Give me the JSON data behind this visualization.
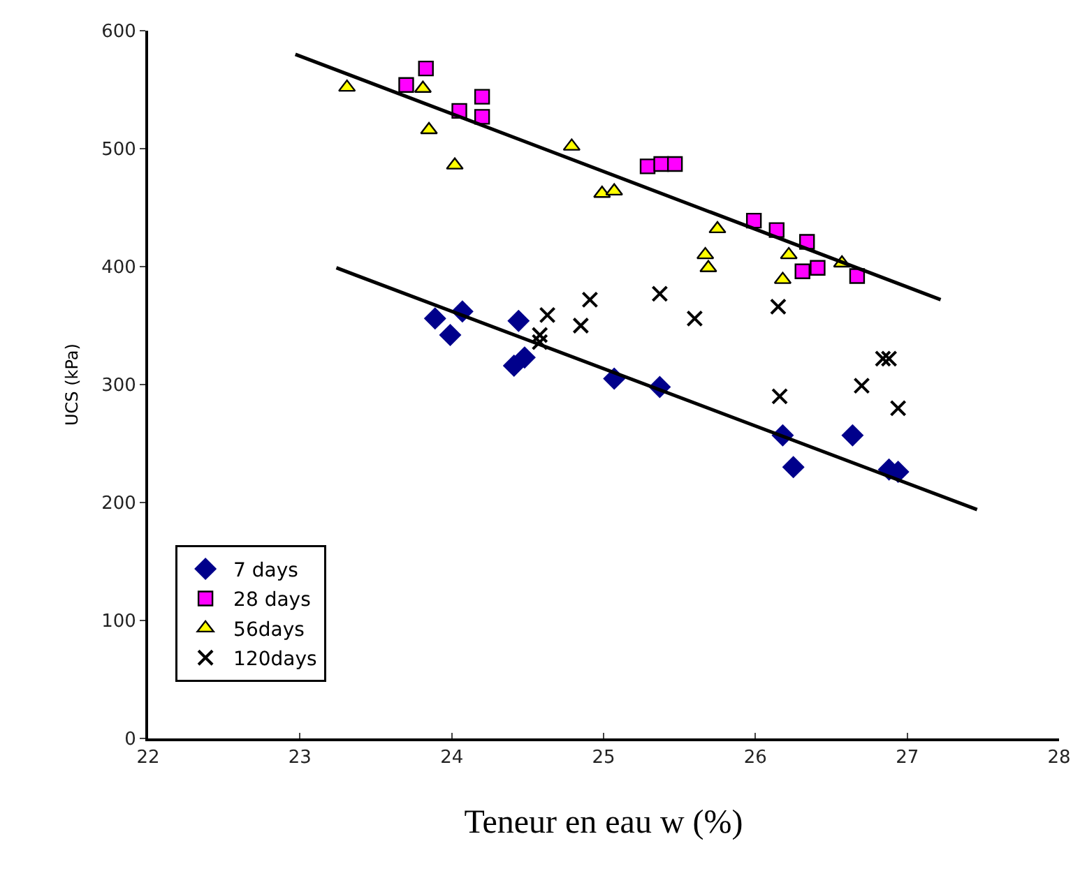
{
  "chart_data": {
    "type": "scatter",
    "xlabel": "Teneur en eau w (%)",
    "ylabel": "UCS (kPa)",
    "xlim": [
      22,
      28
    ],
    "xticks": [
      22,
      23,
      24,
      25,
      26,
      27,
      28
    ],
    "ylim": [
      0,
      600
    ],
    "yticks": [
      0,
      100,
      200,
      300,
      400,
      500,
      600
    ],
    "legend": "bottom left",
    "series": [
      {
        "name": "7 days",
        "color": "#00008b",
        "marker": "diamond",
        "x": [
          23.89,
          24.07,
          23.99,
          24.44,
          24.41,
          24.48,
          25.07,
          25.37,
          26.18,
          26.25,
          26.64,
          26.88,
          26.94
        ],
        "values": [
          356,
          362,
          342,
          354,
          316,
          323,
          305,
          298,
          257,
          230,
          257,
          228,
          226
        ]
      },
      {
        "name": "28 days",
        "color": "#ff00ff",
        "marker": "square",
        "x": [
          23.7,
          23.83,
          24.05,
          24.2,
          24.2,
          25.29,
          25.38,
          25.47,
          25.99,
          26.14,
          26.34,
          26.31,
          26.41,
          26.67
        ],
        "values": [
          554,
          568,
          532,
          544,
          527,
          485,
          487,
          487,
          439,
          431,
          421,
          396,
          399,
          392
        ]
      },
      {
        "name": "56days",
        "color": "#ffff00",
        "marker": "triangle",
        "x": [
          23.31,
          23.81,
          23.85,
          24.02,
          24.79,
          24.99,
          25.07,
          25.75,
          25.67,
          25.69,
          26.22,
          26.18,
          26.57
        ],
        "values": [
          552,
          551,
          516,
          486,
          502,
          462,
          464,
          432,
          410,
          399,
          410,
          389,
          403
        ]
      },
      {
        "name": "120days",
        "color": "#000000",
        "marker": "cross",
        "x": [
          24.63,
          24.91,
          24.85,
          24.58,
          24.58,
          25.37,
          25.6,
          26.15,
          26.16,
          26.84,
          26.88,
          26.7,
          26.94
        ],
        "values": [
          359,
          372,
          350,
          342,
          336,
          377,
          356,
          366,
          290,
          322,
          322,
          299,
          280
        ]
      },
      {
        "type": "line",
        "color": "#000000",
        "marker": "none",
        "x": [
          22.97,
          27.22
        ],
        "values": [
          580,
          372
        ]
      },
      {
        "type": "line",
        "color": "#000000",
        "marker": "none",
        "x": [
          23.24,
          27.46
        ],
        "values": [
          399,
          194
        ]
      }
    ]
  }
}
